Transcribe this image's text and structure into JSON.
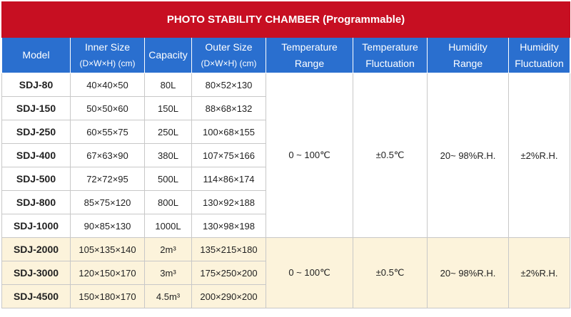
{
  "title": "PHOTO STABILITY CHAMBER (Programmable)",
  "header": [
    [
      "Model"
    ],
    [
      "Inner Size",
      "(D×W×H) (cm)"
    ],
    [
      "Capacity"
    ],
    [
      "Outer Size",
      "(D×W×H) (cm)"
    ],
    [
      "Temperature",
      "Range"
    ],
    [
      "Temperature",
      "Fluctuation"
    ],
    [
      "Humidity",
      "Range"
    ],
    [
      "Humidity",
      "Fluctuation"
    ]
  ],
  "groups": [
    {
      "rows": [
        [
          "SDJ-80",
          "40×40×50",
          "80L",
          "80×52×130"
        ],
        [
          "SDJ-150",
          "50×50×60",
          "150L",
          "88×68×132"
        ],
        [
          "SDJ-250",
          "60×55×75",
          "250L",
          "100×68×155"
        ],
        [
          "SDJ-400",
          "67×63×90",
          "380L",
          "107×75×166"
        ],
        [
          "SDJ-500",
          "72×72×95",
          "500L",
          "114×86×174"
        ],
        [
          "SDJ-800",
          "85×75×120",
          "800L",
          "130×92×188"
        ],
        [
          "SDJ-1000",
          "90×85×130",
          "1000L",
          "130×98×198"
        ]
      ],
      "shared": [
        "0 ~ 100℃",
        "±0.5℃",
        "20~ 98%R.H.",
        "±2%R.H."
      ]
    },
    {
      "rows": [
        [
          "SDJ-2000",
          "105×135×140",
          "2m³",
          "135×215×180"
        ],
        [
          "SDJ-3000",
          "120×150×170",
          "3m³",
          "175×250×200"
        ],
        [
          "SDJ-4500",
          "150×180×170",
          "4.5m³",
          "200×290×200"
        ]
      ],
      "shared": [
        "0 ~ 100℃",
        "±0.5℃",
        "20~ 98%R.H.",
        "±2%R.H."
      ]
    }
  ]
}
